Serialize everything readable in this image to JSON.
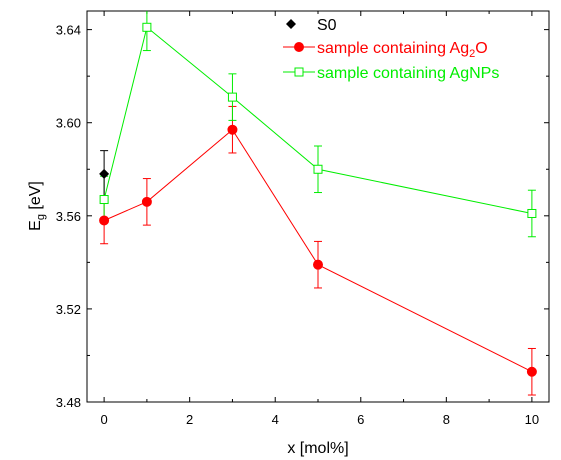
{
  "chart_data": {
    "type": "scatter",
    "xlabel": "x [mol%]",
    "ylabel_main": "E",
    "ylabel_sub": "g",
    "ylabel_rest": " [eV]",
    "xlim": [
      -0.4,
      10.4
    ],
    "ylim": [
      3.48,
      3.648
    ],
    "x_ticks": [
      0,
      2,
      4,
      6,
      8,
      10
    ],
    "x_tick_labels": [
      "0",
      "2",
      "4",
      "6",
      "8",
      "10"
    ],
    "y_ticks": [
      3.48,
      3.52,
      3.56,
      3.6,
      3.64
    ],
    "y_tick_labels": [
      "3.48",
      "3.52",
      "3.56",
      "3.60",
      "3.64"
    ],
    "grid": false,
    "legend_position": "top-right",
    "series": [
      {
        "name": "S0",
        "color": "#000000",
        "marker": "diamond-filled",
        "line": false,
        "x": [
          0
        ],
        "y": [
          3.578
        ],
        "err": [
          0.01
        ]
      },
      {
        "name_parts": [
          "sample containing Ag",
          "2",
          "O"
        ],
        "color": "#ff0000",
        "marker": "circle-filled",
        "line": true,
        "x": [
          0,
          1,
          3,
          5,
          10
        ],
        "y": [
          3.558,
          3.566,
          3.597,
          3.539,
          3.493
        ],
        "err": [
          0.01,
          0.01,
          0.01,
          0.01,
          0.01
        ]
      },
      {
        "name": "sample containing AgNPs",
        "color": "#00ee00",
        "marker": "square-open",
        "line": true,
        "x": [
          0,
          1,
          3,
          5,
          10
        ],
        "y": [
          3.567,
          3.641,
          3.611,
          3.58,
          3.561
        ],
        "err": [
          0.01,
          0.01,
          0.01,
          0.01,
          0.01
        ]
      }
    ]
  }
}
